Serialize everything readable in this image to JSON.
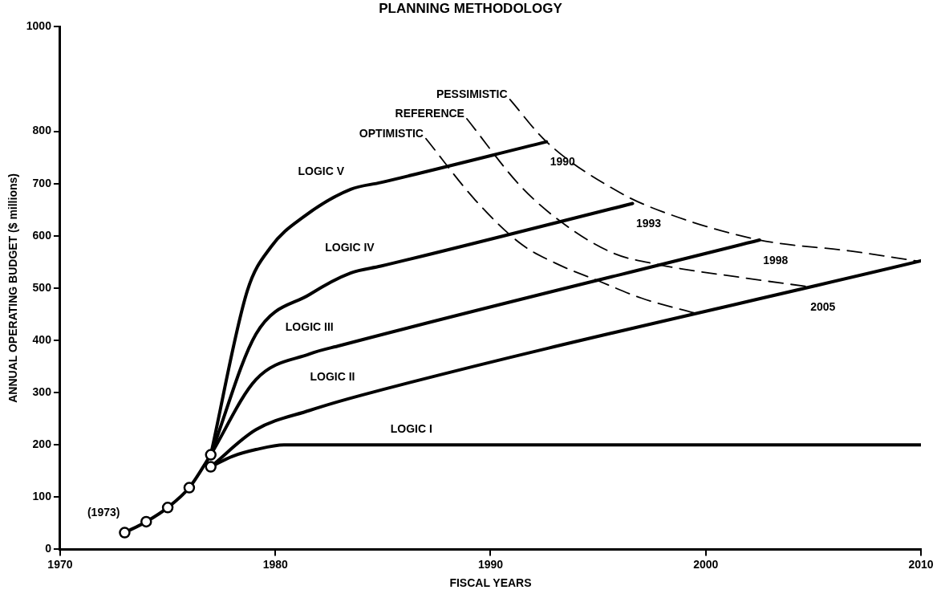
{
  "chart_data": {
    "type": "line",
    "title": "PLANNING METHODOLOGY",
    "xlabel": "FISCAL YEARS",
    "ylabel": "ANNUAL OPERATING BUDGET ($ millions)",
    "xlim": [
      1970,
      2010
    ],
    "xticks": [
      1970,
      1980,
      1990,
      2000,
      2010
    ],
    "ylim": [
      0,
      1000
    ],
    "yticks": [
      0,
      100,
      200,
      300,
      400,
      500,
      600,
      700,
      800,
      1000
    ],
    "grid": false,
    "legend": false,
    "series": [
      {
        "type": "line",
        "color": "#000000",
        "marker": "circle",
        "line_style": "solid",
        "x": [
          1973,
          1974,
          1975,
          1976,
          1977
        ],
        "values": [
          32,
          53,
          80,
          118,
          181
        ]
      },
      {
        "type": "scatter",
        "color": "#000000",
        "marker": "circle",
        "x": [
          1977
        ],
        "values": [
          158
        ]
      },
      {
        "name": "LOGIC I",
        "type": "line",
        "color": "#000000",
        "marker": "none",
        "line_style": "solid",
        "x": [
          1977,
          1978,
          1979.1,
          1980.4,
          2010
        ],
        "values": [
          158,
          178,
          191,
          200,
          200
        ]
      },
      {
        "name": "LOGIC II",
        "type": "line",
        "color": "#000000",
        "marker": "none",
        "line_style": "solid",
        "x": [
          1977,
          1979.1,
          1981.6,
          1984,
          2010
        ],
        "values": [
          158,
          229,
          266,
          295,
          552
        ]
      },
      {
        "name": "LOGIC III",
        "type": "line",
        "color": "#000000",
        "marker": "none",
        "line_style": "solid",
        "x": [
          1977,
          1979.1,
          1981.6,
          1983,
          2002.5
        ],
        "values": [
          181,
          325,
          374,
          390,
          592
        ]
      },
      {
        "name": "LOGIC IV",
        "type": "line",
        "color": "#000000",
        "marker": "none",
        "line_style": "solid",
        "x": [
          1977,
          1979.1,
          1981.6,
          1983.5,
          1984.9,
          1996.6
        ],
        "values": [
          181,
          412,
          488,
          529,
          542,
          662
        ]
      },
      {
        "name": "LOGIC V",
        "type": "line",
        "color": "#000000",
        "marker": "none",
        "line_style": "solid",
        "x": [
          1977,
          1978.7,
          1979.8,
          1981.3,
          1983.5,
          1984.9,
          1992.6
        ],
        "values": [
          181,
          495,
          579,
          636,
          689,
          702,
          780
        ]
      },
      {
        "name": "OPTIMISTIC",
        "type": "line",
        "color": "#000000",
        "marker": "none",
        "line_style": "dashed",
        "x": [
          1987,
          1989.3,
          1991.4,
          1993,
          1995,
          1997,
          1999.5
        ],
        "values": [
          786,
          668,
          585,
          548,
          514,
          481,
          452
        ]
      },
      {
        "name": "REFERENCE",
        "type": "line",
        "color": "#000000",
        "marker": "none",
        "line_style": "dashed",
        "x": [
          1988.9,
          1991.4,
          1993.5,
          1995.7,
          1997.8,
          2001.7,
          2004.7
        ],
        "values": [
          824,
          695,
          620,
          567,
          545,
          520,
          503
        ]
      },
      {
        "name": "PESSIMISTIC",
        "type": "line",
        "color": "#000000",
        "marker": "none",
        "line_style": "dashed",
        "x": [
          1990.9,
          1992.6,
          1996,
          1998,
          2002.5,
          2006.7,
          2009.8
        ],
        "values": [
          861,
          780,
          683,
          646,
          592,
          571,
          552
        ]
      }
    ],
    "annotations": [
      "(1973)",
      {
        "text": "1990",
        "x": 1992.6,
        "y": 780
      },
      {
        "text": "1993",
        "x": 1996.6,
        "y": 662
      },
      {
        "text": "1998",
        "x": 2002.5,
        "y": 592
      },
      {
        "text": "2005",
        "x": 2004.7,
        "y": 503
      }
    ]
  }
}
